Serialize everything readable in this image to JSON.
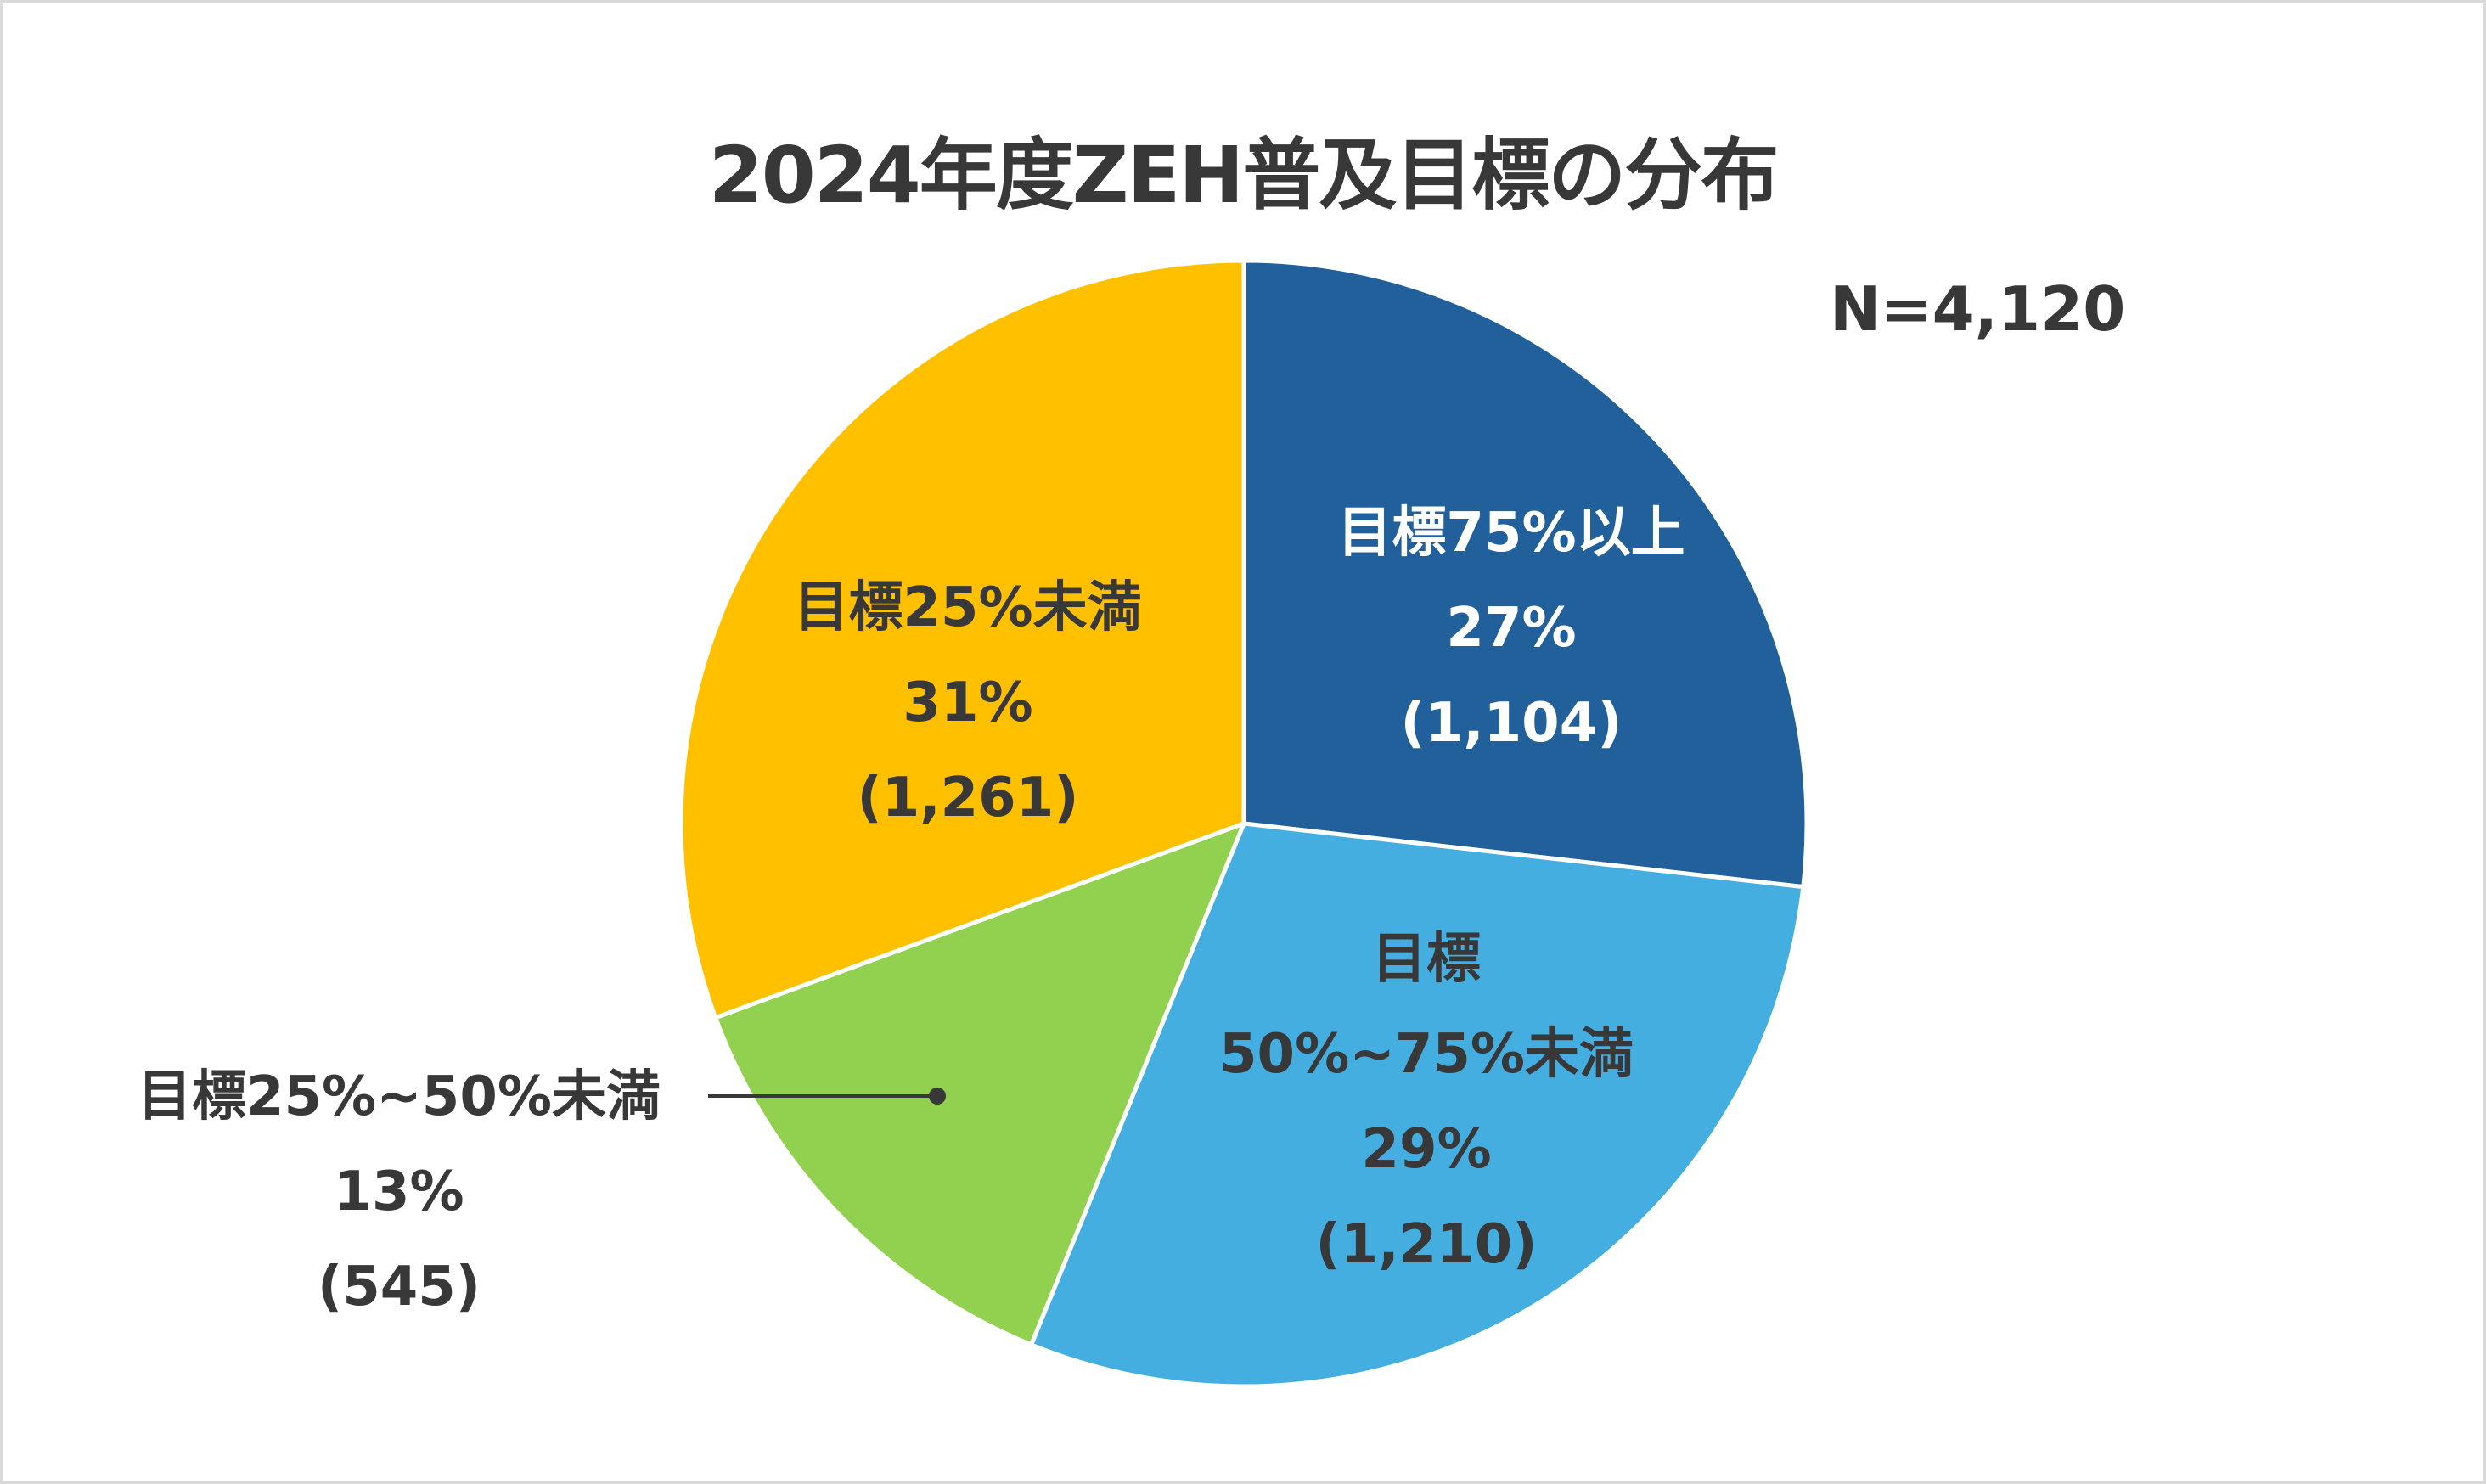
{
  "chart_data": {
    "type": "pie",
    "title": "2024年度ZEH普及目標の分布",
    "annotation": "N=4,120",
    "total": 4120,
    "start_angle_deg": 0,
    "direction": "clockwise",
    "slices": [
      {
        "name": "目標75%以上",
        "name_lines": [
          "目標75%以上"
        ],
        "percent": 27,
        "percent_label": "27%",
        "count": 1104,
        "count_label": "(1,104)",
        "color": "#22609b",
        "label_color": "#ffffff"
      },
      {
        "name": "目標50%~75%未満",
        "name_lines": [
          "目標",
          "50%~75%未満"
        ],
        "percent": 29,
        "percent_label": "29%",
        "count": 1210,
        "count_label": "(1,210)",
        "color": "#45aee0",
        "label_color": "#383838"
      },
      {
        "name": "目標25%~50%未満",
        "name_lines": [
          "目標25%~50%未満"
        ],
        "percent": 13,
        "percent_label": "13%",
        "count": 545,
        "count_label": "(545)",
        "color": "#92d050",
        "label_color": "#383838",
        "label_outside": true
      },
      {
        "name": "目標25%未満",
        "name_lines": [
          "目標25%未満"
        ],
        "percent": 31,
        "percent_label": "31%",
        "count": 1261,
        "count_label": "(1,261)",
        "color": "#ffc000",
        "label_color": "#383838"
      }
    ],
    "legend": null
  },
  "colors": {
    "text": "#383838",
    "background": "#ffffff",
    "border": "#d9d9d9",
    "slice_separator": "#ffffff"
  }
}
